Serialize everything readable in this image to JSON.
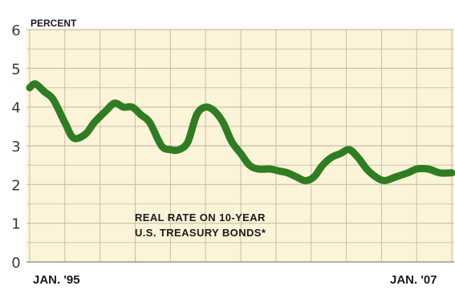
{
  "chart_data": {
    "type": "line",
    "ylabel": "PERCENT",
    "ylim": [
      0,
      6
    ],
    "yticks": [
      "0",
      "1",
      "2",
      "3",
      "4",
      "5",
      "6"
    ],
    "x_labels": [
      "JAN. '95",
      "JAN. '07"
    ],
    "annotation": [
      "REAL RATE ON 10-YEAR",
      "U.S. TREASURY BONDS*"
    ],
    "grid": true,
    "colors": {
      "line": "#2e7d22",
      "background": "#fbf4d9",
      "grid": "#c8bda6"
    },
    "series": [
      {
        "x": [
          "1995-01",
          "1995-03",
          "1995-06",
          "1995-09",
          "1996-01",
          "1996-04",
          "1996-08",
          "1996-11",
          "1997-03",
          "1997-06",
          "1997-09",
          "1997-12",
          "1998-03",
          "1998-06",
          "1998-10",
          "1999-01",
          "1999-04",
          "1999-07",
          "1999-10",
          "2000-01",
          "2000-04",
          "2000-07",
          "2000-10",
          "2001-01",
          "2001-04",
          "2001-07",
          "2001-11",
          "2002-02",
          "2002-05",
          "2002-08",
          "2002-11",
          "2003-02",
          "2003-05",
          "2003-08",
          "2003-11",
          "2004-02",
          "2004-05",
          "2004-08",
          "2004-11",
          "2005-02",
          "2005-06",
          "2005-10",
          "2006-01",
          "2006-05",
          "2006-09",
          "2007-01"
        ],
        "values": [
          4.5,
          4.6,
          4.4,
          4.2,
          3.6,
          3.2,
          3.3,
          3.6,
          3.9,
          4.1,
          4.0,
          4.0,
          3.8,
          3.6,
          3.0,
          2.9,
          2.9,
          3.1,
          3.8,
          4.0,
          3.9,
          3.6,
          3.1,
          2.8,
          2.5,
          2.4,
          2.4,
          2.35,
          2.3,
          2.2,
          2.1,
          2.2,
          2.5,
          2.7,
          2.8,
          2.9,
          2.7,
          2.4,
          2.2,
          2.1,
          2.2,
          2.3,
          2.4,
          2.4,
          2.3,
          2.3
        ]
      }
    ]
  }
}
